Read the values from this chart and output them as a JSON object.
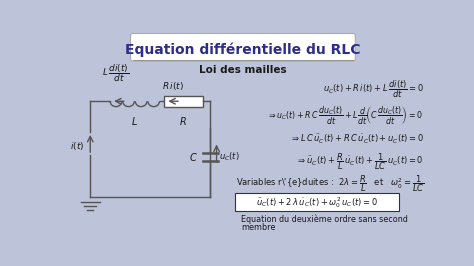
{
  "title": "Equation différentielle du RLC",
  "subtitle": "Loi des mailles",
  "bg_color": "#bdc3d8",
  "title_color": "#2d2d8a",
  "text_color": "#1a1a1a",
  "circuit_color": "#555555",
  "white": "#ffffff"
}
